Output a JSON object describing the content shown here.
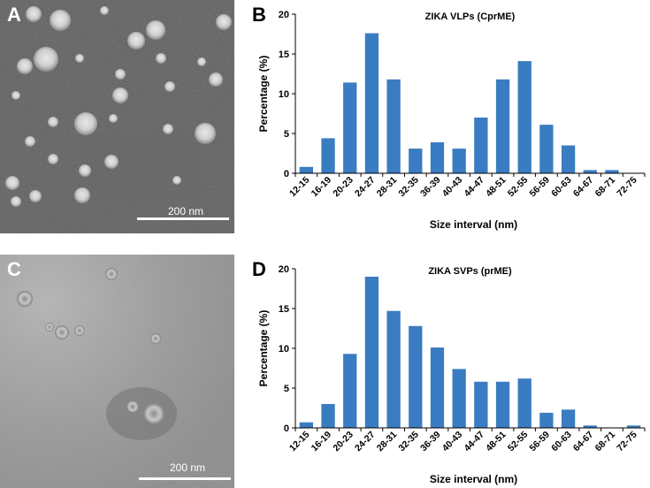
{
  "panels": {
    "A": {
      "letter": "A",
      "scale_label": "200 nm"
    },
    "C": {
      "letter": "C",
      "scale_label": "200 nm"
    },
    "B": {
      "letter": "B"
    },
    "D": {
      "letter": "D"
    }
  },
  "chart_data": [
    {
      "type": "bar",
      "panel": "B",
      "title": "ZIKA VLPs (CprME)",
      "xlabel": "Size interval (nm)",
      "ylabel": "Percentage (%)",
      "ylim": [
        0,
        20
      ],
      "yticks": [
        0,
        5,
        10,
        15,
        20
      ],
      "categories": [
        "12-15",
        "16-19",
        "20-23",
        "24-27",
        "28-31",
        "32-35",
        "36-39",
        "40-43",
        "44-47",
        "48-51",
        "52-55",
        "56-59",
        "60-63",
        "64-67",
        "68-71",
        "72-75"
      ],
      "values": [
        0.8,
        4.4,
        11.4,
        17.6,
        11.8,
        3.1,
        3.9,
        3.1,
        7.0,
        11.8,
        14.1,
        6.1,
        3.5,
        0.4,
        0.4,
        0
      ],
      "bar_color": "#3a7cc1",
      "grid": false
    },
    {
      "type": "bar",
      "panel": "D",
      "title": "ZIKA SVPs (prME)",
      "xlabel": "Size interval (nm)",
      "ylabel": "Percentage (%)",
      "ylim": [
        0,
        20
      ],
      "yticks": [
        0,
        5,
        10,
        15,
        20
      ],
      "categories": [
        "12-15",
        "16-19",
        "20-23",
        "24-27",
        "28-31",
        "32-35",
        "36-39",
        "40-43",
        "44-47",
        "48-51",
        "52-55",
        "56-59",
        "60-63",
        "64-67",
        "68-71",
        "72-75"
      ],
      "values": [
        0.7,
        3.0,
        9.3,
        19.0,
        14.7,
        12.8,
        10.1,
        7.4,
        5.8,
        5.8,
        6.2,
        1.9,
        2.3,
        0.3,
        0,
        0.3
      ],
      "bar_color": "#3a7cc1",
      "grid": false
    }
  ]
}
